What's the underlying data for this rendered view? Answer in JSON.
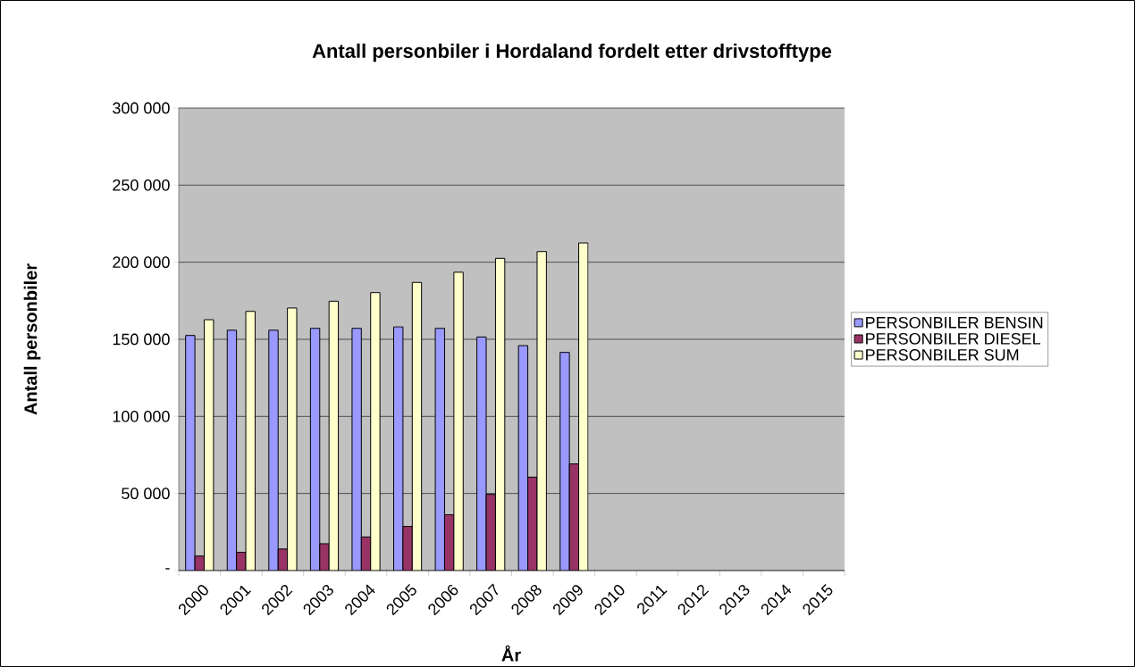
{
  "chart_data": {
    "type": "bar",
    "title": "Antall personbiler i Hordaland fordelt etter drivstofftype",
    "xlabel": "År",
    "ylabel": "Antall personbiler",
    "categories": [
      "2000",
      "2001",
      "2002",
      "2003",
      "2004",
      "2005",
      "2006",
      "2007",
      "2008",
      "2009",
      "2010",
      "2011",
      "2012",
      "2013",
      "2014",
      "2015"
    ],
    "series": [
      {
        "name": "PERSONBILER BENSIN",
        "color": "#9999ff",
        "values": [
          152500,
          155900,
          155900,
          157100,
          157100,
          158100,
          157100,
          151500,
          145900,
          141500,
          null,
          null,
          null,
          null,
          null,
          null
        ]
      },
      {
        "name": "PERSONBILER DIESEL",
        "color": "#993366",
        "values": [
          9400,
          11800,
          14000,
          17400,
          21800,
          28600,
          36200,
          49400,
          60600,
          69200,
          null,
          null,
          null,
          null,
          null,
          null
        ]
      },
      {
        "name": "PERSONBILER SUM",
        "color": "#ffffcc",
        "values": [
          162700,
          168100,
          170300,
          174700,
          180300,
          186900,
          193500,
          202500,
          206900,
          212500,
          null,
          null,
          null,
          null,
          null,
          null
        ]
      }
    ],
    "ylim": [
      0,
      300000
    ],
    "yticks": [
      {
        "value": 0,
        "label": "-"
      },
      {
        "value": 50000,
        "label": "50 000"
      },
      {
        "value": 100000,
        "label": "100 000"
      },
      {
        "value": 150000,
        "label": "150 000"
      },
      {
        "value": 200000,
        "label": "200 000"
      },
      {
        "value": 250000,
        "label": "250 000"
      },
      {
        "value": 300000,
        "label": "300 000"
      }
    ],
    "grid": "y",
    "legend": "right"
  }
}
